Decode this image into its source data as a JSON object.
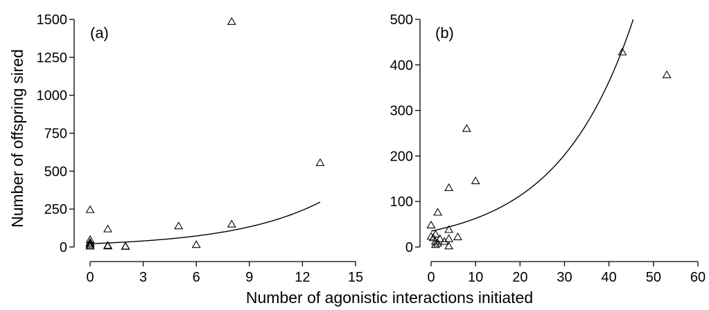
{
  "figure": {
    "ylabel": "Number of offspring sired",
    "xlabel": "Number of agonistic interactions initiated"
  },
  "chart_data": [
    {
      "type": "scatter",
      "panel_label": "(a)",
      "xlim": [
        0,
        15
      ],
      "ylim": [
        0,
        1500
      ],
      "xticks": [
        0,
        3,
        6,
        9,
        12,
        15
      ],
      "yticks": [
        0,
        250,
        500,
        750,
        1000,
        1250,
        1500
      ],
      "grid": false,
      "points": [
        {
          "x": 0,
          "y": 245
        },
        {
          "x": 0,
          "y": 48
        },
        {
          "x": 0,
          "y": 30
        },
        {
          "x": 0,
          "y": 20
        },
        {
          "x": 0,
          "y": 12
        },
        {
          "x": 0,
          "y": 5
        },
        {
          "x": 1,
          "y": 118
        },
        {
          "x": 1,
          "y": 10
        },
        {
          "x": 1,
          "y": 6
        },
        {
          "x": 2,
          "y": 5
        },
        {
          "x": 2,
          "y": 3
        },
        {
          "x": 5,
          "y": 138
        },
        {
          "x": 6,
          "y": 15
        },
        {
          "x": 8,
          "y": 1485
        },
        {
          "x": 8,
          "y": 150
        },
        {
          "x": 13,
          "y": 555
        }
      ],
      "fit": {
        "form": "exponential",
        "a": 22,
        "b": 0.2,
        "x_range": [
          0,
          13
        ]
      }
    },
    {
      "type": "scatter",
      "panel_label": "(b)",
      "xlim": [
        0,
        60
      ],
      "ylim": [
        0,
        500
      ],
      "xticks": [
        0,
        10,
        20,
        30,
        40,
        50,
        60
      ],
      "yticks": [
        0,
        100,
        200,
        300,
        400,
        500
      ],
      "grid": false,
      "points": [
        {
          "x": 0,
          "y": 48
        },
        {
          "x": 0,
          "y": 23
        },
        {
          "x": 0.5,
          "y": 20
        },
        {
          "x": 1,
          "y": 28
        },
        {
          "x": 1,
          "y": 12
        },
        {
          "x": 1,
          "y": 5
        },
        {
          "x": 1.5,
          "y": 76
        },
        {
          "x": 1.5,
          "y": 8
        },
        {
          "x": 2,
          "y": 18
        },
        {
          "x": 3,
          "y": 12
        },
        {
          "x": 4,
          "y": 130
        },
        {
          "x": 4,
          "y": 38
        },
        {
          "x": 4,
          "y": 18
        },
        {
          "x": 4,
          "y": 2
        },
        {
          "x": 6,
          "y": 22
        },
        {
          "x": 8,
          "y": 260
        },
        {
          "x": 10,
          "y": 145
        },
        {
          "x": 43,
          "y": 428
        },
        {
          "x": 53,
          "y": 378
        }
      ],
      "fit": {
        "form": "exponential",
        "a": 35,
        "b": 0.0585,
        "x_range": [
          0,
          60
        ]
      }
    }
  ]
}
